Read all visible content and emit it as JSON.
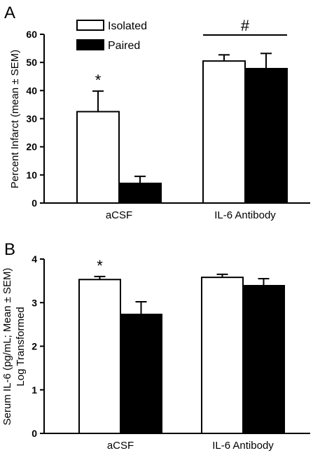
{
  "figure": {
    "panels": [
      {
        "letter": "A",
        "legend": [
          {
            "label": "Isolated",
            "color": "#ffffff"
          },
          {
            "label": "Paired",
            "color": "#000000"
          }
        ]
      },
      {
        "letter": "B"
      }
    ]
  },
  "chart_data": [
    {
      "type": "bar",
      "categories": [
        "aCSF",
        "IL-6 Antibody"
      ],
      "series": [
        {
          "name": "Isolated",
          "color": "#ffffff",
          "values": [
            32.5,
            50.5
          ],
          "errors": [
            7.3,
            2.2
          ]
        },
        {
          "name": "Paired",
          "color": "#000000",
          "values": [
            7.0,
            47.8
          ],
          "errors": [
            2.5,
            5.4
          ]
        }
      ],
      "ylabel": "Percent Infarct (mean ± SEM)",
      "ylim": [
        0,
        60
      ],
      "yticks": [
        0,
        10,
        20,
        30,
        40,
        50,
        60
      ],
      "annotations": [
        {
          "text": "*",
          "category": "aCSF",
          "series": "Isolated"
        },
        {
          "text": "#",
          "category": "IL-6 Antibody",
          "span": "group"
        }
      ],
      "legend_position": "top-left",
      "grid": false
    },
    {
      "type": "bar",
      "categories": [
        "aCSF",
        "IL-6 Antibody"
      ],
      "series": [
        {
          "name": "Isolated",
          "color": "#ffffff",
          "values": [
            3.53,
            3.58
          ],
          "errors": [
            0.07,
            0.07
          ]
        },
        {
          "name": "Paired",
          "color": "#000000",
          "values": [
            2.73,
            3.39
          ],
          "errors": [
            0.29,
            0.16
          ]
        }
      ],
      "ylabel_lines": [
        "Serum IL-6 (pg/mL; Mean ± SEM)",
        "Log Transformed"
      ],
      "ylim": [
        0,
        4
      ],
      "yticks": [
        0,
        1,
        2,
        3,
        4
      ],
      "annotations": [
        {
          "text": "*",
          "category": "aCSF",
          "series": "Isolated"
        }
      ],
      "legend_position": "none",
      "grid": false
    }
  ]
}
